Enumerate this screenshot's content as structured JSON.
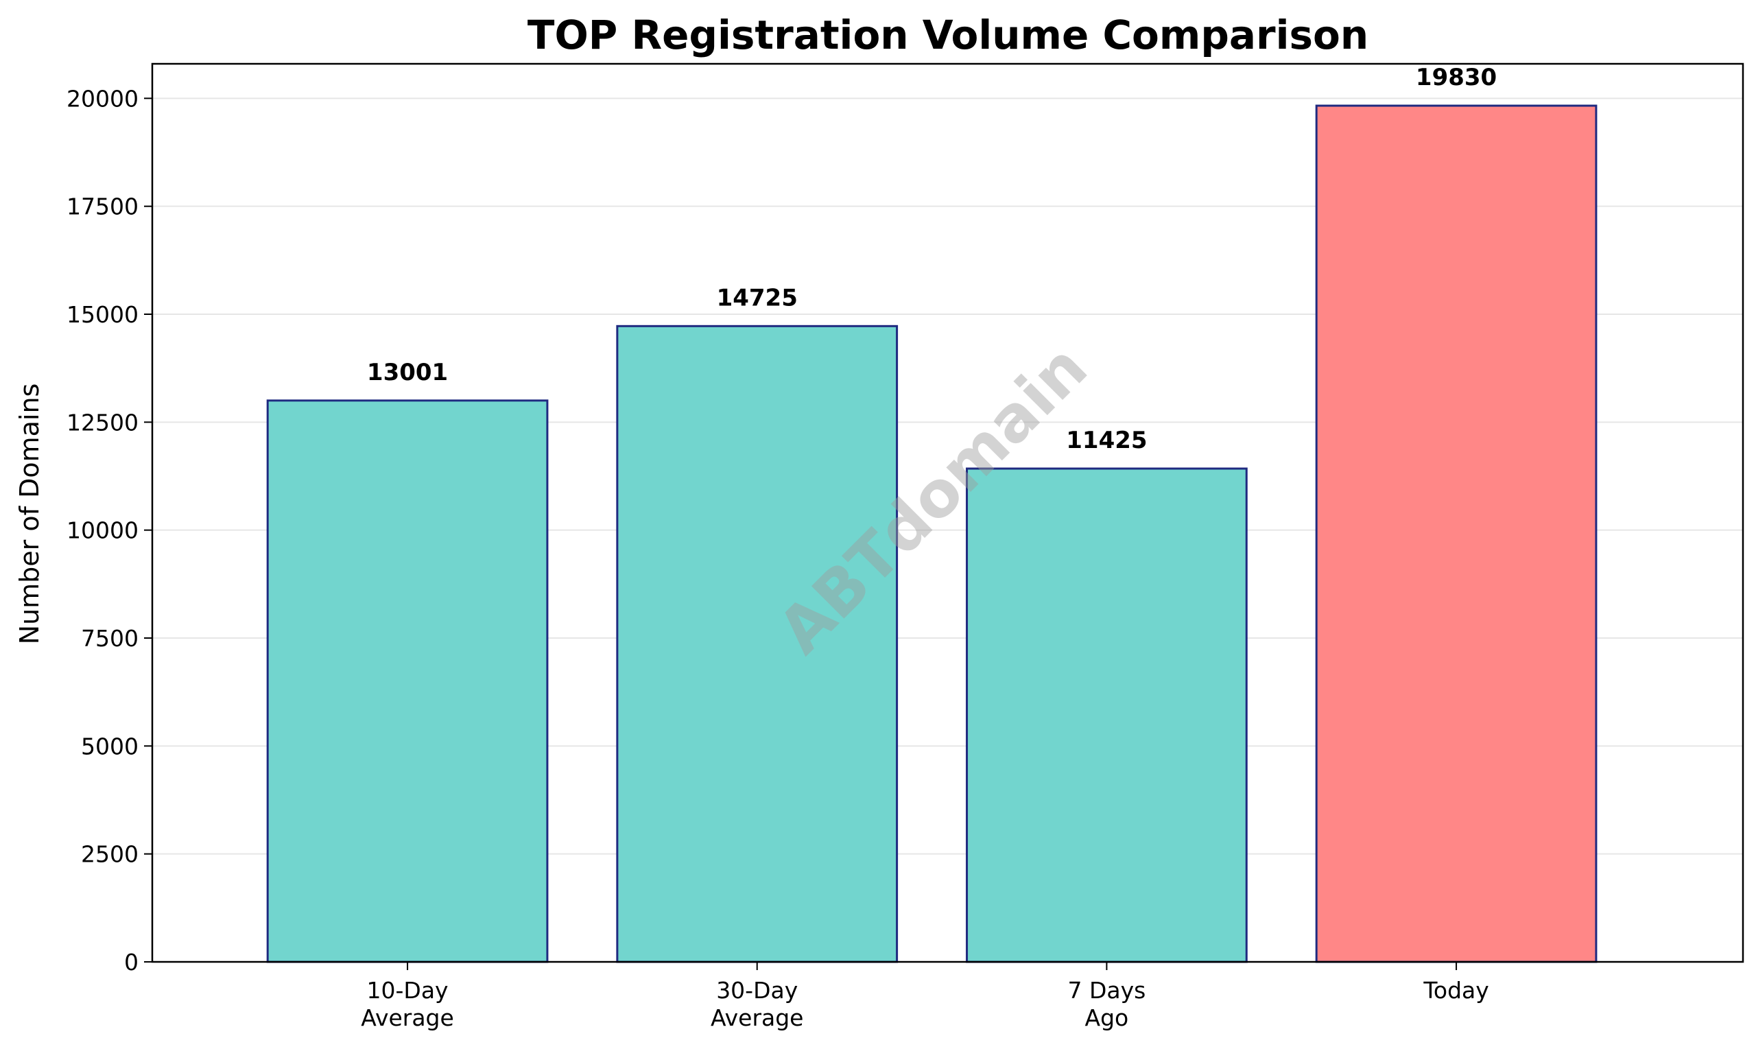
{
  "chart_data": {
    "type": "bar",
    "title": "TOP Registration Volume Comparison",
    "xlabel": "",
    "ylabel": "Number of Domains",
    "categories": [
      "10-Day\nAverage",
      "30-Day\nAverage",
      "7 Days\nAgo",
      "Today"
    ],
    "values": [
      13001,
      14725,
      11425,
      19830
    ],
    "data_labels": [
      "13001",
      "14725",
      "11425",
      "19830"
    ],
    "bar_colors": [
      "#72d5ce",
      "#72d5ce",
      "#72d5ce",
      "#ff8787"
    ],
    "bar_edge_color": "#1f2a80",
    "ylim": [
      0,
      20800
    ],
    "yticks": [
      0,
      2500,
      5000,
      7500,
      10000,
      12500,
      15000,
      17500,
      20000
    ],
    "grid": "y",
    "legend": "none"
  },
  "watermark": "ABTdomain"
}
